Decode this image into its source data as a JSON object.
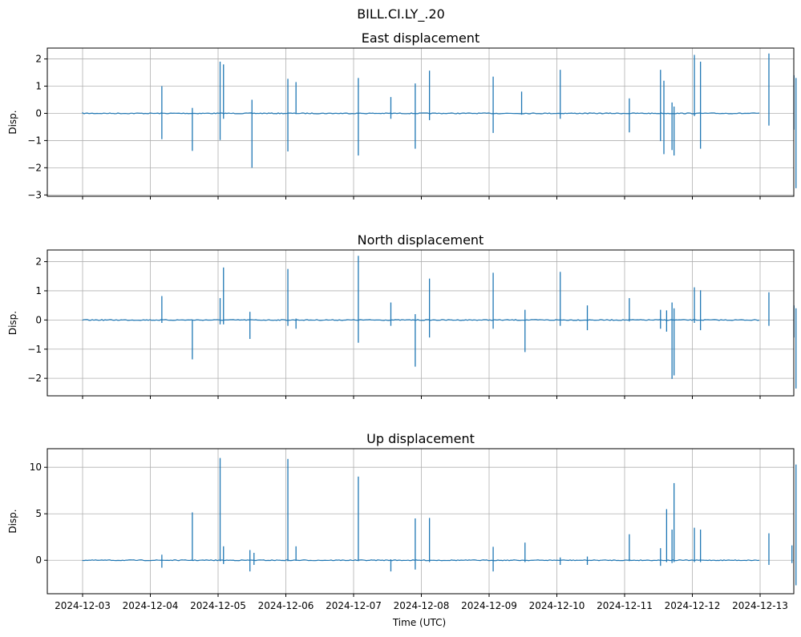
{
  "colors": {
    "series": "#1f77b4",
    "grid": "#b0b0b0",
    "axis": "#000000"
  },
  "chart_data": {
    "type": "line",
    "suptitle": "BILL.CI.LY_.20",
    "xlabel": "Time (UTC)",
    "x_ticks": [
      "2024-12-03",
      "2024-12-04",
      "2024-12-05",
      "2024-12-06",
      "2024-12-07",
      "2024-12-08",
      "2024-12-09",
      "2024-12-10",
      "2024-12-11",
      "2024-12-12",
      "2024-12-13"
    ],
    "x_range": [
      "2024-12-02T12:00",
      "2024-12-13T12:00"
    ],
    "grid": true,
    "panels": [
      {
        "title": "East displacement",
        "ylabel": "Disp.",
        "ylim": [
          -3.05,
          2.4
        ],
        "yticks": [
          2,
          1,
          0,
          -1,
          -2,
          -3
        ],
        "ytick_labels": [
          "2",
          "1",
          "0",
          "−1",
          "−2",
          "−3"
        ],
        "baseline": 0,
        "spikes": [
          {
            "t": 1.17,
            "max": 1.0,
            "min": -0.95
          },
          {
            "t": 1.62,
            "max": 0.2,
            "min": -1.38
          },
          {
            "t": 2.03,
            "max": 1.9,
            "min": -0.98
          },
          {
            "t": 2.08,
            "max": 1.8,
            "min": -0.2
          },
          {
            "t": 2.5,
            "max": 0.5,
            "min": -2.0
          },
          {
            "t": 3.03,
            "max": 1.27,
            "min": -1.4
          },
          {
            "t": 3.15,
            "max": 1.15,
            "min": 0
          },
          {
            "t": 4.07,
            "max": 1.3,
            "min": -1.55
          },
          {
            "t": 4.55,
            "max": 0.6,
            "min": -0.2
          },
          {
            "t": 4.91,
            "max": 1.1,
            "min": -1.3
          },
          {
            "t": 5.12,
            "max": 1.57,
            "min": -0.25
          },
          {
            "t": 6.06,
            "max": 1.35,
            "min": -0.72
          },
          {
            "t": 6.48,
            "max": 0.8,
            "min": -0.05
          },
          {
            "t": 7.05,
            "max": 1.6,
            "min": -0.2
          },
          {
            "t": 8.07,
            "max": 0.55,
            "min": -0.7
          },
          {
            "t": 8.53,
            "max": 1.6,
            "min": -1.02
          },
          {
            "t": 8.58,
            "max": 1.2,
            "min": -1.5
          },
          {
            "t": 8.7,
            "max": 0.4,
            "min": -1.35
          },
          {
            "t": 8.73,
            "max": 0.25,
            "min": -1.55
          },
          {
            "t": 9.03,
            "max": 2.15,
            "min": -0.1
          },
          {
            "t": 9.12,
            "max": 1.9,
            "min": -1.3
          },
          {
            "t": 10.13,
            "max": 2.2,
            "min": -0.45
          },
          {
            "t": 10.5,
            "max": 1.4,
            "min": -0.6
          },
          {
            "t": 10.53,
            "max": 1.3,
            "min": -2.75
          }
        ]
      },
      {
        "title": "North displacement",
        "ylabel": "Disp.",
        "ylim": [
          -2.6,
          2.4
        ],
        "yticks": [
          2,
          1,
          0,
          -1,
          -2
        ],
        "ytick_labels": [
          "2",
          "1",
          "0",
          "−1",
          "−2"
        ],
        "baseline": 0,
        "spikes": [
          {
            "t": 1.17,
            "max": 0.82,
            "min": -0.1
          },
          {
            "t": 1.62,
            "max": 0.0,
            "min": -1.35
          },
          {
            "t": 2.03,
            "max": 0.75,
            "min": -0.15
          },
          {
            "t": 2.08,
            "max": 1.8,
            "min": -0.15
          },
          {
            "t": 2.47,
            "max": 0.28,
            "min": -0.65
          },
          {
            "t": 3.03,
            "max": 1.75,
            "min": -0.2
          },
          {
            "t": 3.15,
            "max": 0.05,
            "min": -0.3
          },
          {
            "t": 4.07,
            "max": 2.2,
            "min": -0.78
          },
          {
            "t": 4.55,
            "max": 0.6,
            "min": -0.2
          },
          {
            "t": 4.91,
            "max": 0.2,
            "min": -1.6
          },
          {
            "t": 5.12,
            "max": 1.42,
            "min": -0.6
          },
          {
            "t": 6.06,
            "max": 1.62,
            "min": -0.3
          },
          {
            "t": 6.53,
            "max": 0.35,
            "min": -1.1
          },
          {
            "t": 7.05,
            "max": 1.65,
            "min": -0.2
          },
          {
            "t": 7.45,
            "max": 0.5,
            "min": -0.35
          },
          {
            "t": 8.07,
            "max": 0.75,
            "min": -0.05
          },
          {
            "t": 8.53,
            "max": 0.35,
            "min": -0.3
          },
          {
            "t": 8.62,
            "max": 0.33,
            "min": -0.4
          },
          {
            "t": 8.7,
            "max": 0.6,
            "min": -2.02
          },
          {
            "t": 8.73,
            "max": 0.4,
            "min": -1.9
          },
          {
            "t": 9.03,
            "max": 1.12,
            "min": -0.1
          },
          {
            "t": 9.12,
            "max": 1.02,
            "min": -0.35
          },
          {
            "t": 10.13,
            "max": 0.95,
            "min": -0.2
          },
          {
            "t": 10.5,
            "max": 0.5,
            "min": -0.6
          },
          {
            "t": 10.53,
            "max": 0.4,
            "min": -2.35
          }
        ]
      },
      {
        "title": "Up displacement",
        "ylabel": "Disp.",
        "ylim": [
          -3.6,
          12.0
        ],
        "yticks": [
          10,
          5,
          0
        ],
        "ytick_labels": [
          "10",
          "5",
          "0"
        ],
        "baseline": 0,
        "spikes": [
          {
            "t": 1.17,
            "max": 0.6,
            "min": -0.8
          },
          {
            "t": 1.62,
            "max": 5.15,
            "min": 0
          },
          {
            "t": 2.03,
            "max": 11.0,
            "min": -0.1
          },
          {
            "t": 2.08,
            "max": 1.5,
            "min": -0.4
          },
          {
            "t": 2.47,
            "max": 1.1,
            "min": -1.2
          },
          {
            "t": 2.53,
            "max": 0.8,
            "min": -0.5
          },
          {
            "t": 3.03,
            "max": 10.9,
            "min": -0.1
          },
          {
            "t": 3.15,
            "max": 1.5,
            "min": 0
          },
          {
            "t": 4.07,
            "max": 9.0,
            "min": -0.1
          },
          {
            "t": 4.55,
            "max": 0.1,
            "min": -1.2
          },
          {
            "t": 4.91,
            "max": 4.5,
            "min": -1.0
          },
          {
            "t": 5.12,
            "max": 4.55,
            "min": -0.2
          },
          {
            "t": 6.06,
            "max": 1.45,
            "min": -1.2
          },
          {
            "t": 6.53,
            "max": 1.9,
            "min": -0.2
          },
          {
            "t": 7.05,
            "max": 0.3,
            "min": -0.5
          },
          {
            "t": 7.45,
            "max": 0.4,
            "min": -0.5
          },
          {
            "t": 8.07,
            "max": 2.8,
            "min": -0.1
          },
          {
            "t": 8.53,
            "max": 1.3,
            "min": -0.6
          },
          {
            "t": 8.62,
            "max": 5.5,
            "min": -0.2
          },
          {
            "t": 8.7,
            "max": 3.3,
            "min": -0.3
          },
          {
            "t": 8.73,
            "max": 8.3,
            "min": -0.2
          },
          {
            "t": 9.03,
            "max": 3.5,
            "min": -0.2
          },
          {
            "t": 9.12,
            "max": 3.3,
            "min": -0.2
          },
          {
            "t": 10.13,
            "max": 2.9,
            "min": -0.5
          },
          {
            "t": 10.47,
            "max": 1.6,
            "min": -0.3
          },
          {
            "t": 10.53,
            "max": 10.3,
            "min": -2.7
          }
        ]
      }
    ]
  }
}
